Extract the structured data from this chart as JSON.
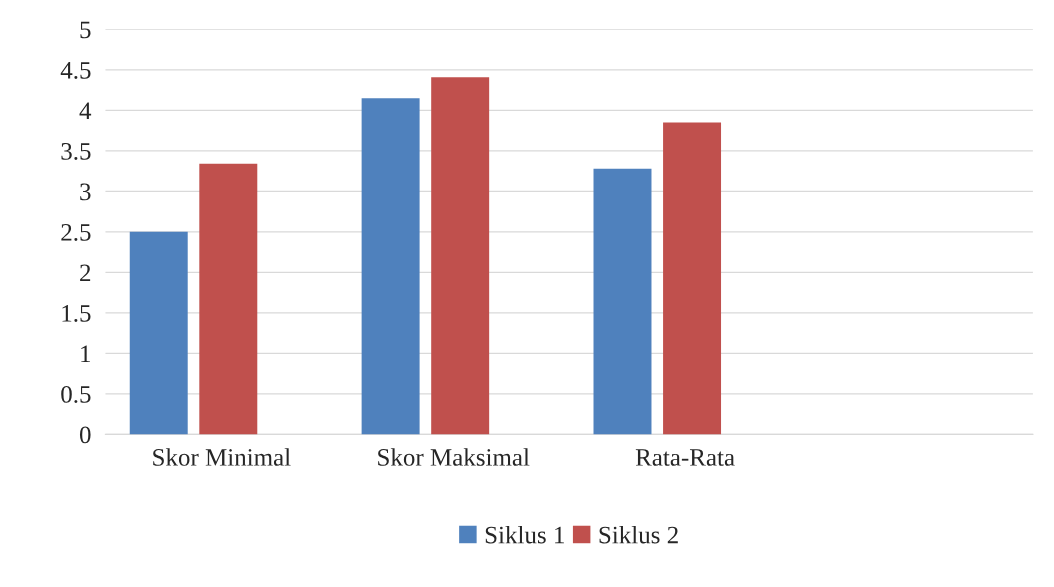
{
  "chart_data": {
    "type": "bar",
    "categories": [
      "Skor Minimal",
      "Skor Maksimal",
      "Rata-Rata",
      null
    ],
    "series": [
      {
        "name": "Siklus 1",
        "color": "#4f81bd",
        "values": [
          2.5,
          4.15,
          3.28,
          null
        ]
      },
      {
        "name": "Siklus 2",
        "color": "#c0504d",
        "values": [
          3.34,
          4.41,
          3.85,
          null
        ]
      }
    ],
    "ylim": [
      0,
      5
    ],
    "yticks": [
      0,
      0.5,
      1,
      1.5,
      2,
      2.5,
      3,
      3.5,
      4,
      4.5,
      5
    ],
    "grid": "y",
    "legend": "bottom"
  }
}
